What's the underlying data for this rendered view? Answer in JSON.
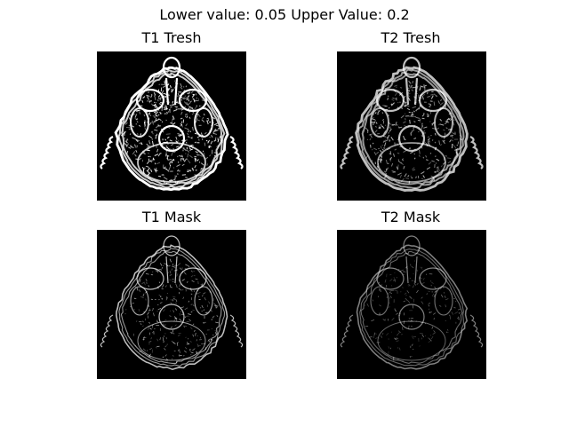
{
  "figure": {
    "suptitle": "Lower value: 0.05 Upper Value: 0.2"
  },
  "panels": [
    {
      "title": "T1 Tresh",
      "style": "thresh",
      "brightness": "high"
    },
    {
      "title": "T2 Tresh",
      "style": "thresh",
      "brightness": "medium"
    },
    {
      "title": "T1 Mask",
      "style": "mask",
      "brightness": "medium"
    },
    {
      "title": "T2 Mask",
      "style": "mask",
      "brightness": "low"
    }
  ],
  "colors": {
    "background": "#ffffff",
    "image_background": "#000000",
    "foreground": "#ffffff"
  }
}
